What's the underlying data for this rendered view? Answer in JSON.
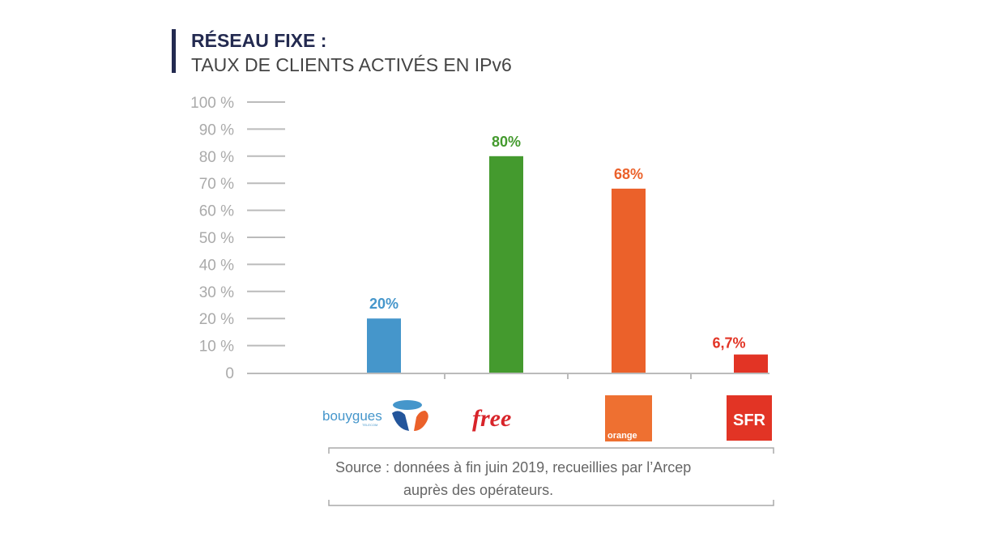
{
  "chart_data": {
    "type": "bar",
    "title": "RÉSEAU FIXE :",
    "subtitle": "TAUX DE CLIENTS ACTIVÉS EN IPv6",
    "categories": [
      "Bouygues Telecom",
      "Free",
      "Orange",
      "SFR"
    ],
    "values": [
      20,
      80,
      68,
      6.7
    ],
    "value_labels": [
      "20%",
      "80%",
      "68%",
      "6,7%"
    ],
    "colors": [
      "#4596cb",
      "#449a2e",
      "#eb612a",
      "#e23425"
    ],
    "label_colors": [
      "#4596cb",
      "#449a2e",
      "#eb612a",
      "#e23425"
    ],
    "yticks": [
      0,
      10,
      20,
      30,
      40,
      50,
      60,
      70,
      80,
      90,
      100
    ],
    "ytick_labels": [
      "0",
      "10 %",
      "20 %",
      "30 %",
      "40 %",
      "50 %",
      "60 %",
      "70 %",
      "80 %",
      "90 %",
      "100 %"
    ],
    "ylim": [
      0,
      100
    ],
    "xlabel": "",
    "ylabel": "",
    "logos": {
      "bouygues": "bouygues",
      "bouygues_sub": "TELECOM",
      "free": "free",
      "orange": "orange",
      "sfr": "SFR"
    },
    "source_line1": "Source : données à fin juin 2019, recueillies par l’Arcep",
    "source_line2": "auprès des opérateurs."
  }
}
